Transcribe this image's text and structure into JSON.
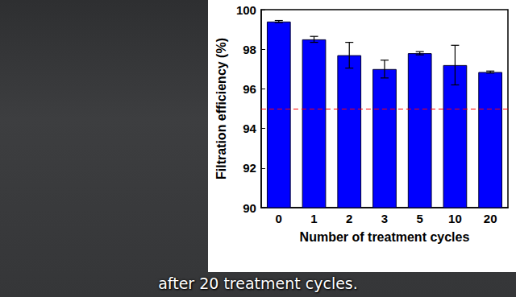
{
  "chart_data": {
    "type": "bar",
    "x_label": "Number of treatment cycles",
    "y_label": "Filtration efficiency (%)",
    "categories": [
      "0",
      "1",
      "2",
      "3",
      "5",
      "10",
      "20"
    ],
    "values": [
      99.4,
      98.5,
      97.7,
      97.0,
      97.8,
      97.2,
      96.85
    ],
    "errors": [
      0.05,
      0.15,
      0.65,
      0.45,
      0.08,
      1.0,
      0.05
    ],
    "color": "#0000ff",
    "threshold": 95,
    "ylim": [
      90,
      100
    ],
    "yticks": [
      90,
      92,
      94,
      96,
      98,
      100
    ],
    "grid": false,
    "annotations": [
      "after 20 treatment cycles."
    ]
  }
}
